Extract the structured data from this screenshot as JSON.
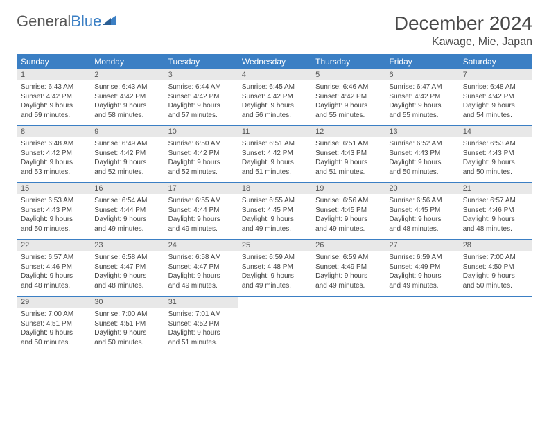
{
  "logo": {
    "text1": "General",
    "text2": "Blue"
  },
  "title": "December 2024",
  "location": "Kawage, Mie, Japan",
  "colors": {
    "header_bg": "#3b7fc4",
    "header_text": "#ffffff",
    "daynum_bg": "#e8e8e8",
    "border": "#3b7fc4",
    "body_text": "#444444",
    "title_text": "#4a4a4a"
  },
  "weekdays": [
    "Sunday",
    "Monday",
    "Tuesday",
    "Wednesday",
    "Thursday",
    "Friday",
    "Saturday"
  ],
  "weeks": [
    {
      "nums": [
        "1",
        "2",
        "3",
        "4",
        "5",
        "6",
        "7"
      ],
      "cells": [
        {
          "sunrise": "Sunrise: 6:43 AM",
          "sunset": "Sunset: 4:42 PM",
          "day1": "Daylight: 9 hours",
          "day2": "and 59 minutes."
        },
        {
          "sunrise": "Sunrise: 6:43 AM",
          "sunset": "Sunset: 4:42 PM",
          "day1": "Daylight: 9 hours",
          "day2": "and 58 minutes."
        },
        {
          "sunrise": "Sunrise: 6:44 AM",
          "sunset": "Sunset: 4:42 PM",
          "day1": "Daylight: 9 hours",
          "day2": "and 57 minutes."
        },
        {
          "sunrise": "Sunrise: 6:45 AM",
          "sunset": "Sunset: 4:42 PM",
          "day1": "Daylight: 9 hours",
          "day2": "and 56 minutes."
        },
        {
          "sunrise": "Sunrise: 6:46 AM",
          "sunset": "Sunset: 4:42 PM",
          "day1": "Daylight: 9 hours",
          "day2": "and 55 minutes."
        },
        {
          "sunrise": "Sunrise: 6:47 AM",
          "sunset": "Sunset: 4:42 PM",
          "day1": "Daylight: 9 hours",
          "day2": "and 55 minutes."
        },
        {
          "sunrise": "Sunrise: 6:48 AM",
          "sunset": "Sunset: 4:42 PM",
          "day1": "Daylight: 9 hours",
          "day2": "and 54 minutes."
        }
      ]
    },
    {
      "nums": [
        "8",
        "9",
        "10",
        "11",
        "12",
        "13",
        "14"
      ],
      "cells": [
        {
          "sunrise": "Sunrise: 6:48 AM",
          "sunset": "Sunset: 4:42 PM",
          "day1": "Daylight: 9 hours",
          "day2": "and 53 minutes."
        },
        {
          "sunrise": "Sunrise: 6:49 AM",
          "sunset": "Sunset: 4:42 PM",
          "day1": "Daylight: 9 hours",
          "day2": "and 52 minutes."
        },
        {
          "sunrise": "Sunrise: 6:50 AM",
          "sunset": "Sunset: 4:42 PM",
          "day1": "Daylight: 9 hours",
          "day2": "and 52 minutes."
        },
        {
          "sunrise": "Sunrise: 6:51 AM",
          "sunset": "Sunset: 4:42 PM",
          "day1": "Daylight: 9 hours",
          "day2": "and 51 minutes."
        },
        {
          "sunrise": "Sunrise: 6:51 AM",
          "sunset": "Sunset: 4:43 PM",
          "day1": "Daylight: 9 hours",
          "day2": "and 51 minutes."
        },
        {
          "sunrise": "Sunrise: 6:52 AM",
          "sunset": "Sunset: 4:43 PM",
          "day1": "Daylight: 9 hours",
          "day2": "and 50 minutes."
        },
        {
          "sunrise": "Sunrise: 6:53 AM",
          "sunset": "Sunset: 4:43 PM",
          "day1": "Daylight: 9 hours",
          "day2": "and 50 minutes."
        }
      ]
    },
    {
      "nums": [
        "15",
        "16",
        "17",
        "18",
        "19",
        "20",
        "21"
      ],
      "cells": [
        {
          "sunrise": "Sunrise: 6:53 AM",
          "sunset": "Sunset: 4:43 PM",
          "day1": "Daylight: 9 hours",
          "day2": "and 50 minutes."
        },
        {
          "sunrise": "Sunrise: 6:54 AM",
          "sunset": "Sunset: 4:44 PM",
          "day1": "Daylight: 9 hours",
          "day2": "and 49 minutes."
        },
        {
          "sunrise": "Sunrise: 6:55 AM",
          "sunset": "Sunset: 4:44 PM",
          "day1": "Daylight: 9 hours",
          "day2": "and 49 minutes."
        },
        {
          "sunrise": "Sunrise: 6:55 AM",
          "sunset": "Sunset: 4:45 PM",
          "day1": "Daylight: 9 hours",
          "day2": "and 49 minutes."
        },
        {
          "sunrise": "Sunrise: 6:56 AM",
          "sunset": "Sunset: 4:45 PM",
          "day1": "Daylight: 9 hours",
          "day2": "and 49 minutes."
        },
        {
          "sunrise": "Sunrise: 6:56 AM",
          "sunset": "Sunset: 4:45 PM",
          "day1": "Daylight: 9 hours",
          "day2": "and 48 minutes."
        },
        {
          "sunrise": "Sunrise: 6:57 AM",
          "sunset": "Sunset: 4:46 PM",
          "day1": "Daylight: 9 hours",
          "day2": "and 48 minutes."
        }
      ]
    },
    {
      "nums": [
        "22",
        "23",
        "24",
        "25",
        "26",
        "27",
        "28"
      ],
      "cells": [
        {
          "sunrise": "Sunrise: 6:57 AM",
          "sunset": "Sunset: 4:46 PM",
          "day1": "Daylight: 9 hours",
          "day2": "and 48 minutes."
        },
        {
          "sunrise": "Sunrise: 6:58 AM",
          "sunset": "Sunset: 4:47 PM",
          "day1": "Daylight: 9 hours",
          "day2": "and 48 minutes."
        },
        {
          "sunrise": "Sunrise: 6:58 AM",
          "sunset": "Sunset: 4:47 PM",
          "day1": "Daylight: 9 hours",
          "day2": "and 49 minutes."
        },
        {
          "sunrise": "Sunrise: 6:59 AM",
          "sunset": "Sunset: 4:48 PM",
          "day1": "Daylight: 9 hours",
          "day2": "and 49 minutes."
        },
        {
          "sunrise": "Sunrise: 6:59 AM",
          "sunset": "Sunset: 4:49 PM",
          "day1": "Daylight: 9 hours",
          "day2": "and 49 minutes."
        },
        {
          "sunrise": "Sunrise: 6:59 AM",
          "sunset": "Sunset: 4:49 PM",
          "day1": "Daylight: 9 hours",
          "day2": "and 49 minutes."
        },
        {
          "sunrise": "Sunrise: 7:00 AM",
          "sunset": "Sunset: 4:50 PM",
          "day1": "Daylight: 9 hours",
          "day2": "and 50 minutes."
        }
      ]
    },
    {
      "nums": [
        "29",
        "30",
        "31",
        "",
        "",
        "",
        ""
      ],
      "cells": [
        {
          "sunrise": "Sunrise: 7:00 AM",
          "sunset": "Sunset: 4:51 PM",
          "day1": "Daylight: 9 hours",
          "day2": "and 50 minutes."
        },
        {
          "sunrise": "Sunrise: 7:00 AM",
          "sunset": "Sunset: 4:51 PM",
          "day1": "Daylight: 9 hours",
          "day2": "and 50 minutes."
        },
        {
          "sunrise": "Sunrise: 7:01 AM",
          "sunset": "Sunset: 4:52 PM",
          "day1": "Daylight: 9 hours",
          "day2": "and 51 minutes."
        },
        null,
        null,
        null,
        null
      ]
    }
  ]
}
